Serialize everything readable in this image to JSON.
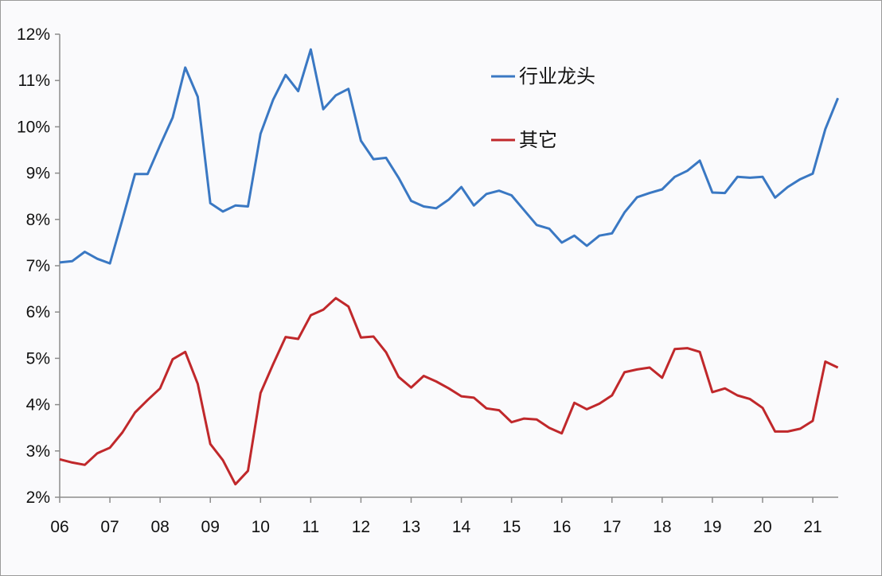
{
  "chart_data": {
    "type": "line",
    "title": "",
    "xlabel": "",
    "ylabel": "",
    "x_tick_labels": [
      "06",
      "07",
      "08",
      "09",
      "10",
      "11",
      "12",
      "13",
      "14",
      "15",
      "16",
      "17",
      "18",
      "19",
      "20",
      "21"
    ],
    "y_tick_labels": [
      "2%",
      "3%",
      "4%",
      "5%",
      "6%",
      "7%",
      "8%",
      "9%",
      "10%",
      "11%",
      "12%"
    ],
    "ylim": [
      2,
      12
    ],
    "x_start_year": 2006,
    "points_per_year": 4,
    "grid": false,
    "legend_position": "top-center",
    "series": [
      {
        "name": "行业龙头",
        "color": "#3a78c3",
        "values": [
          7.07,
          7.1,
          7.3,
          7.15,
          7.05,
          8.0,
          8.98,
          8.98,
          9.6,
          10.2,
          11.28,
          10.65,
          8.35,
          8.17,
          8.3,
          8.28,
          9.85,
          10.58,
          11.12,
          10.77,
          11.67,
          10.38,
          10.68,
          10.82,
          9.7,
          9.3,
          9.33,
          8.9,
          8.4,
          8.28,
          8.24,
          8.43,
          8.7,
          8.3,
          8.55,
          8.62,
          8.52,
          8.2,
          7.88,
          7.8,
          7.5,
          7.65,
          7.43,
          7.65,
          7.7,
          8.15,
          8.48,
          8.57,
          8.65,
          8.92,
          9.05,
          9.27,
          8.58,
          8.57,
          8.92,
          8.9,
          8.92,
          8.47,
          8.7,
          8.87,
          8.99,
          9.95,
          10.62
        ]
      },
      {
        "name": "其它",
        "color": "#c0282b",
        "values": [
          2.82,
          2.75,
          2.7,
          2.95,
          3.07,
          3.4,
          3.83,
          4.1,
          4.35,
          4.98,
          5.14,
          4.45,
          3.15,
          2.8,
          2.28,
          2.57,
          4.25,
          4.87,
          5.46,
          5.42,
          5.93,
          6.05,
          6.3,
          6.12,
          5.45,
          5.47,
          5.13,
          4.6,
          4.37,
          4.62,
          4.5,
          4.35,
          4.18,
          4.15,
          3.92,
          3.88,
          3.62,
          3.7,
          3.68,
          3.5,
          3.38,
          4.04,
          3.9,
          4.02,
          4.2,
          4.7,
          4.76,
          4.8,
          4.58,
          5.2,
          5.22,
          5.14,
          4.27,
          4.35,
          4.2,
          4.12,
          3.93,
          3.42,
          3.42,
          3.48,
          3.65,
          4.93,
          4.8
        ]
      }
    ]
  }
}
